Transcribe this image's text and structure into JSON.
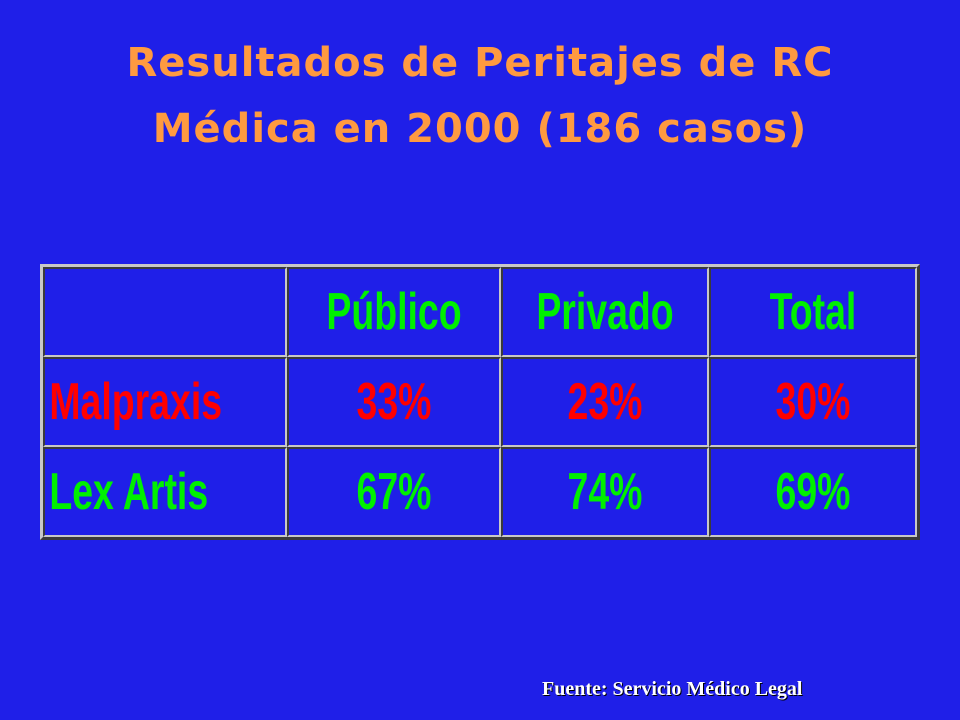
{
  "slide": {
    "title_line1": "Resultados de Peritajes de RC",
    "title_line2": "Médica en 2000 (186 casos)",
    "source": "Fuente: Servicio Médico Legal",
    "colors": {
      "background": "#1f1fe8",
      "title": "#ff9a40",
      "header_text": "#00f000",
      "malpraxis_text": "#ff0000",
      "lex_artis_text": "#00f000"
    }
  },
  "table": {
    "headers": [
      "",
      "Público",
      "Privado",
      "Total"
    ],
    "rows": [
      {
        "label": "Malpraxis",
        "values": [
          "33%",
          "23%",
          "30%"
        ]
      },
      {
        "label": "Lex Artis",
        "values": [
          "67%",
          "74%",
          "69%"
        ]
      }
    ]
  }
}
